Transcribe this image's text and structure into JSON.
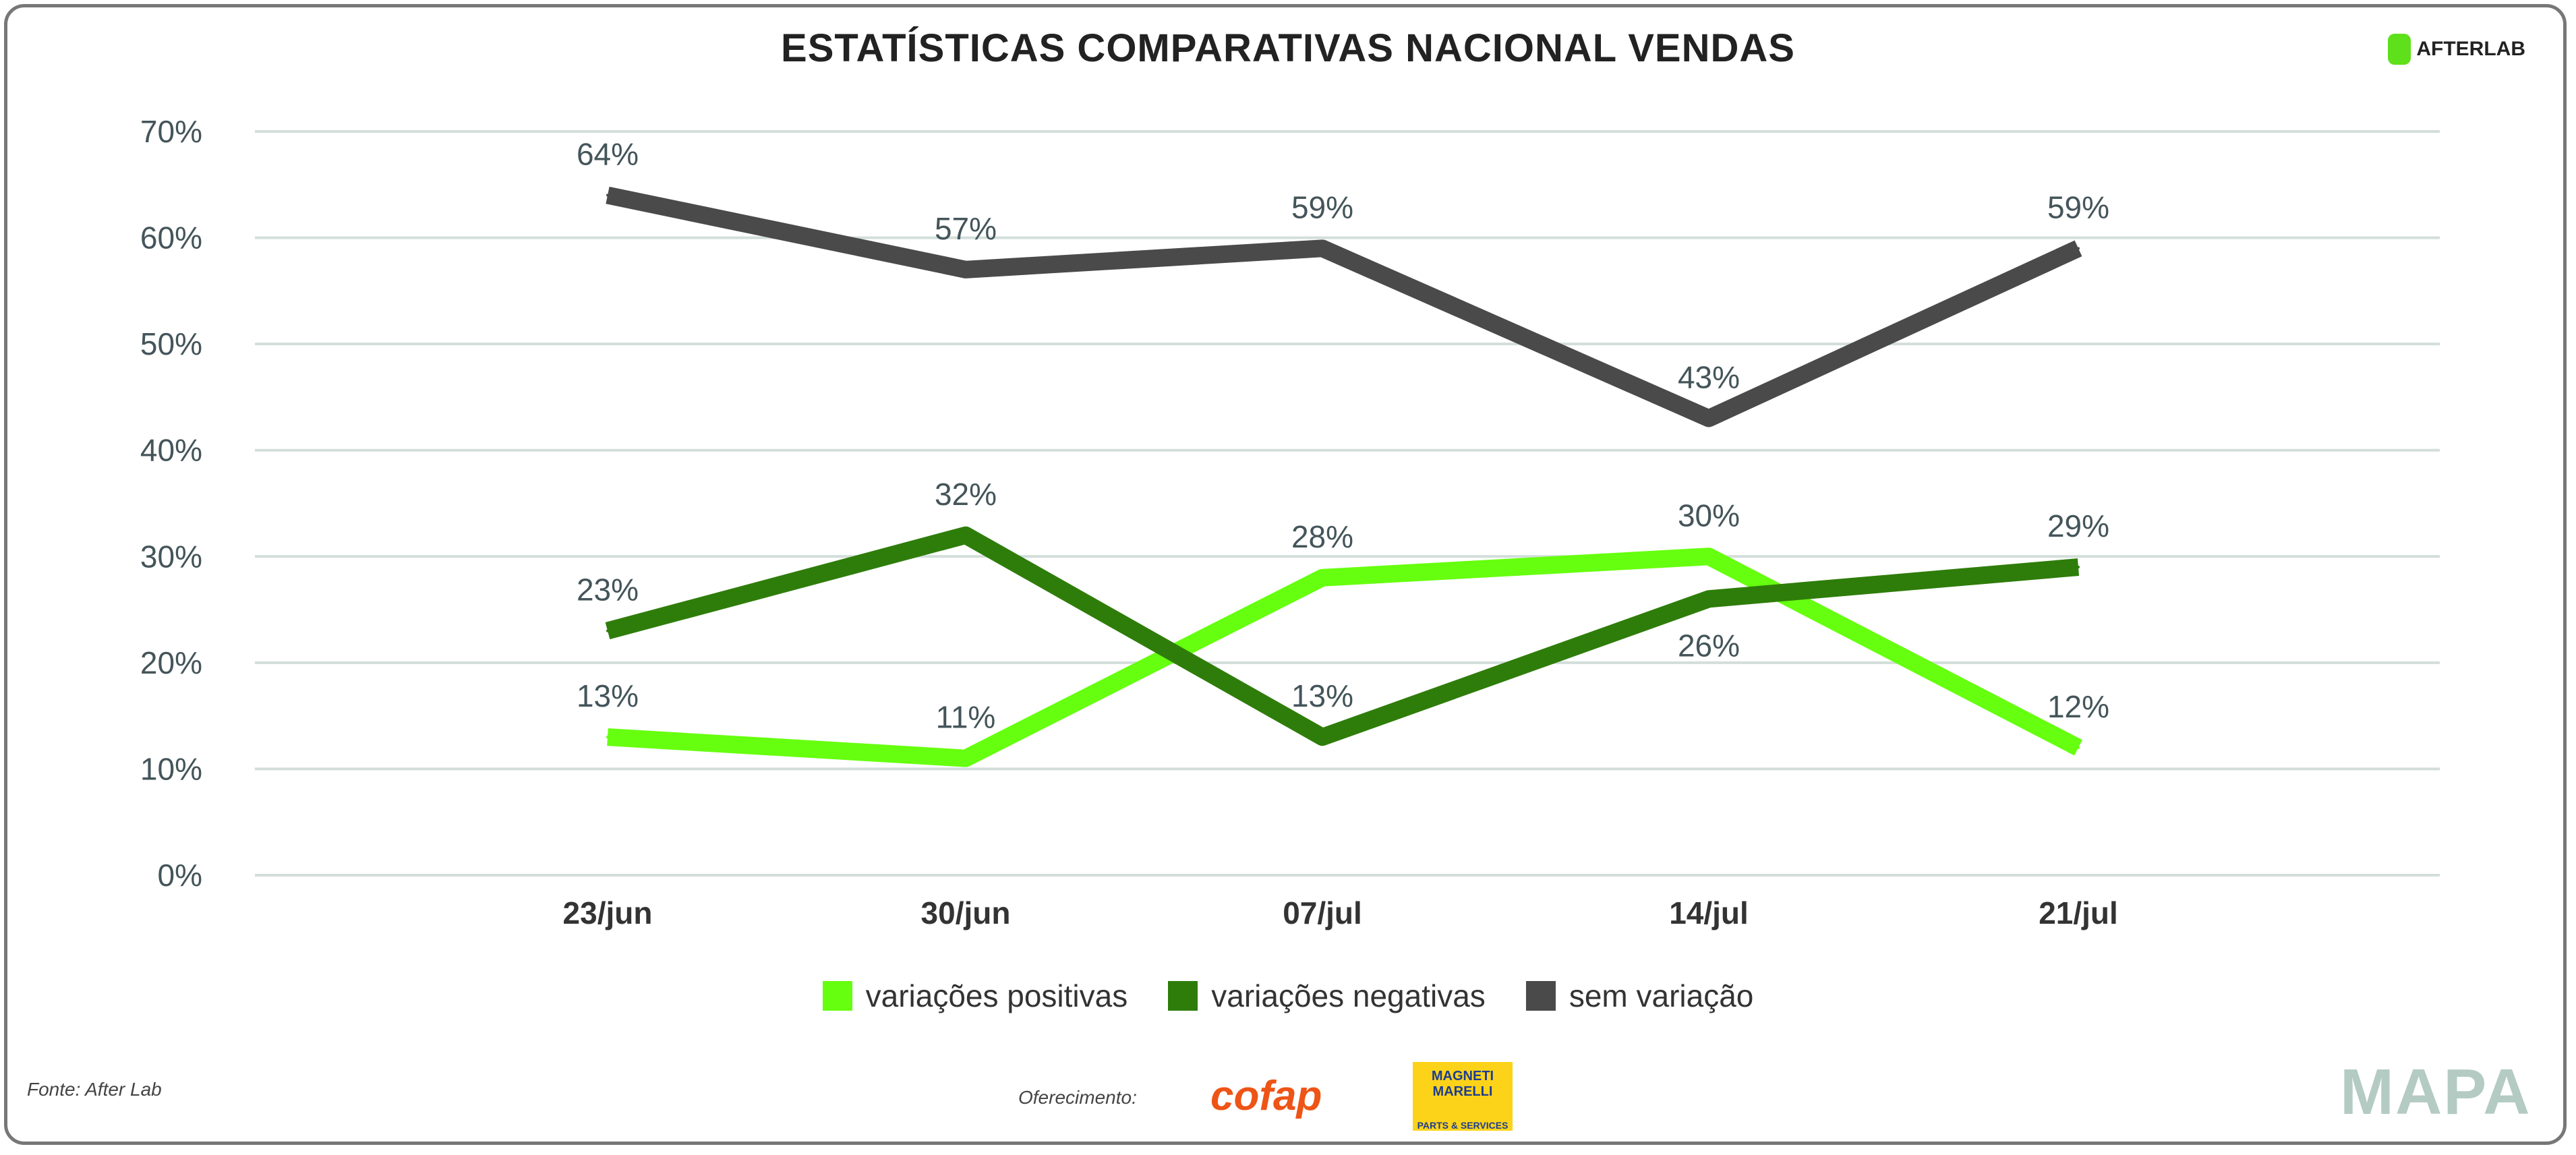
{
  "title": "ESTATÍSTICAS COMPARATIVAS NACIONAL VENDAS",
  "brand": "AFTERLAB",
  "footer": {
    "source": "Fonte: After Lab",
    "sponsor_label": "Oferecimento:",
    "sponsor1": "cofap",
    "sponsor2_top": "MAGNETI MARELLI",
    "sponsor2_bottom": "PARTS & SERVICES",
    "logo": "MAPA"
  },
  "colors": {
    "positivas": "#66ff0f",
    "negativas": "#2e7d0a",
    "sem": "#4a4a4a",
    "grid": "#d3dedb",
    "tick": "#44555a"
  },
  "chart_data": {
    "type": "line",
    "title": "ESTATÍSTICAS COMPARATIVAS NACIONAL VENDAS",
    "categories": [
      "23/jun",
      "30/jun",
      "07/jul",
      "14/jul",
      "21/jul"
    ],
    "ylim": [
      0,
      70
    ],
    "yticks": [
      0,
      10,
      20,
      30,
      40,
      50,
      60,
      70
    ],
    "ytick_labels": [
      "0%",
      "10%",
      "20%",
      "30%",
      "40%",
      "50%",
      "60%",
      "70%"
    ],
    "grid": true,
    "legend": "bottom",
    "series": [
      {
        "name": "variações positivas",
        "values": [
          13,
          11,
          28,
          30,
          12
        ],
        "labels": [
          "13%",
          "11%",
          "28%",
          "30%",
          "12%"
        ]
      },
      {
        "name": "variações negativas",
        "values": [
          23,
          32,
          13,
          26,
          29
        ],
        "labels": [
          "23%",
          "32%",
          "13%",
          "26%",
          "29%"
        ]
      },
      {
        "name": "sem variação",
        "values": [
          64,
          57,
          59,
          43,
          59
        ],
        "labels": [
          "64%",
          "57%",
          "59%",
          "43%",
          "59%"
        ]
      }
    ]
  }
}
